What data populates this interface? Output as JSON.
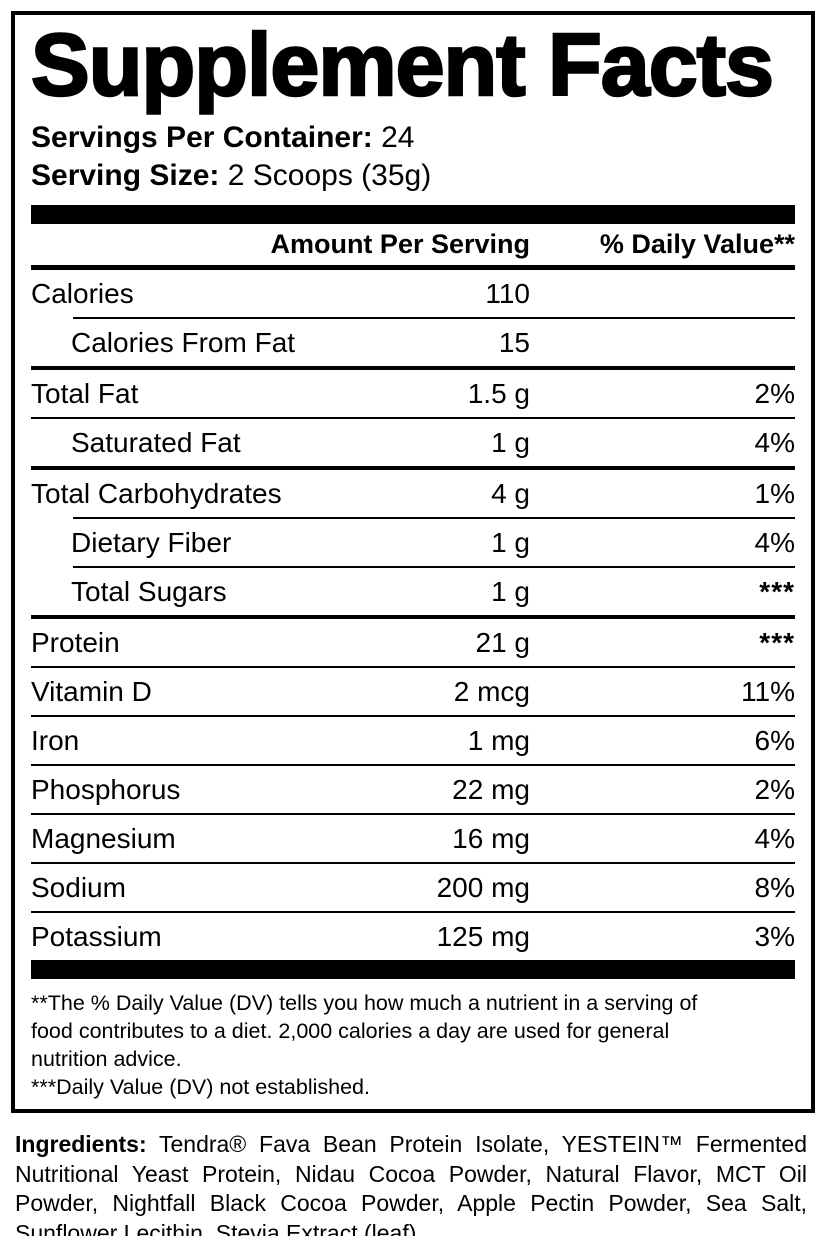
{
  "title": "Supplement Facts",
  "servings": {
    "per_container_label": "Servings Per Container:",
    "per_container_value": "24",
    "serving_size_label": "Serving Size:",
    "serving_size_value": "2 Scoops (35g)"
  },
  "table": {
    "header": {
      "amount": "Amount Per Serving",
      "daily_value": "% Daily Value**"
    },
    "rows": [
      {
        "name": "Calories",
        "amount": "110",
        "dv": "",
        "indent": false,
        "divider": "none"
      },
      {
        "name": "Calories From Fat",
        "amount": "15",
        "dv": "",
        "indent": true,
        "divider": "thin-indent"
      },
      {
        "name": "Total Fat",
        "amount": "1.5 g",
        "dv": "2%",
        "indent": false,
        "divider": "thick"
      },
      {
        "name": "Saturated Fat",
        "amount": "1 g",
        "dv": "4%",
        "indent": true,
        "divider": "thin"
      },
      {
        "name": "Total Carbohydrates",
        "amount": "4 g",
        "dv": "1%",
        "indent": false,
        "divider": "thick"
      },
      {
        "name": "Dietary Fiber",
        "amount": "1 g",
        "dv": "4%",
        "indent": true,
        "divider": "thin-indent"
      },
      {
        "name": "Total Sugars",
        "amount": "1 g",
        "dv": "***",
        "indent": true,
        "divider": "thin-indent"
      },
      {
        "name": "Protein",
        "amount": "21 g",
        "dv": "***",
        "indent": false,
        "divider": "thick"
      },
      {
        "name": "Vitamin D",
        "amount": "2 mcg",
        "dv": "11%",
        "indent": false,
        "divider": "thin"
      },
      {
        "name": "Iron",
        "amount": "1 mg",
        "dv": "6%",
        "indent": false,
        "divider": "thin"
      },
      {
        "name": "Phosphorus",
        "amount": "22 mg",
        "dv": "2%",
        "indent": false,
        "divider": "thin"
      },
      {
        "name": "Magnesium",
        "amount": "16 mg",
        "dv": "4%",
        "indent": false,
        "divider": "thin"
      },
      {
        "name": "Sodium",
        "amount": "200 mg",
        "dv": "8%",
        "indent": false,
        "divider": "thin"
      },
      {
        "name": "Potassium",
        "amount": "125 mg",
        "dv": "3%",
        "indent": false,
        "divider": "thin"
      }
    ]
  },
  "footnotes": {
    "lines": [
      "**The % Daily Value (DV) tells you how much a nutrient in a serving of",
      "food contributes to a diet. 2,000 calories a day are used for general",
      "nutrition advice.",
      "***Daily Value (DV) not established."
    ]
  },
  "ingredients": {
    "label": "Ingredients:",
    "text": "Tendra® Fava Bean Protein Isolate, YESTEIN™ Fermented Nutritional Yeast Protein, Nidau Cocoa Powder, Natural Flavor, MCT Oil Powder, Nightfall Black Cocoa Powder, Apple Pectin Powder, Sea Salt, Sunflower Lecithin, Stevia Extract (leaf)."
  },
  "colors": {
    "ink": "#000000",
    "background": "#ffffff"
  }
}
